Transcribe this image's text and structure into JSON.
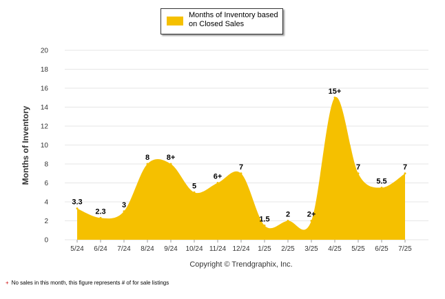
{
  "legend": {
    "label": "Months of Inventory based on Closed Sales"
  },
  "footnote": {
    "symbol": "+",
    "text": "No sales in this month, this figure represents # of for sale listings"
  },
  "colors": {
    "area": "#f5c000",
    "grid": "#e6e6e6",
    "axis_text": "#333333",
    "footnote_symbol": "#cc0000"
  },
  "chart_data": {
    "type": "area",
    "title": "",
    "xlabel": "Copyright © Trendgraphix, Inc.",
    "ylabel": "Months of Inventory",
    "ylim": [
      0,
      20
    ],
    "yticks": [
      0,
      2,
      4,
      6,
      8,
      10,
      12,
      14,
      16,
      18,
      20
    ],
    "grid": true,
    "legend_position": "top-center",
    "categories": [
      "5/24",
      "6/24",
      "7/24",
      "8/24",
      "9/24",
      "10/24",
      "11/24",
      "12/24",
      "1/25",
      "2/25",
      "3/25",
      "4/25",
      "5/25",
      "6/25",
      "7/25"
    ],
    "series": [
      {
        "name": "Months of Inventory based on Closed Sales",
        "values": [
          3.3,
          2.3,
          3,
          8,
          8,
          5,
          6,
          7,
          1.5,
          2,
          2,
          15,
          7,
          5.5,
          7
        ],
        "labels": [
          "3.3",
          "2.3",
          "3",
          "8",
          "8+",
          "5",
          "6+",
          "7",
          "1.5",
          "2",
          "2+",
          "15+",
          "7",
          "5.5",
          "7"
        ]
      }
    ]
  }
}
